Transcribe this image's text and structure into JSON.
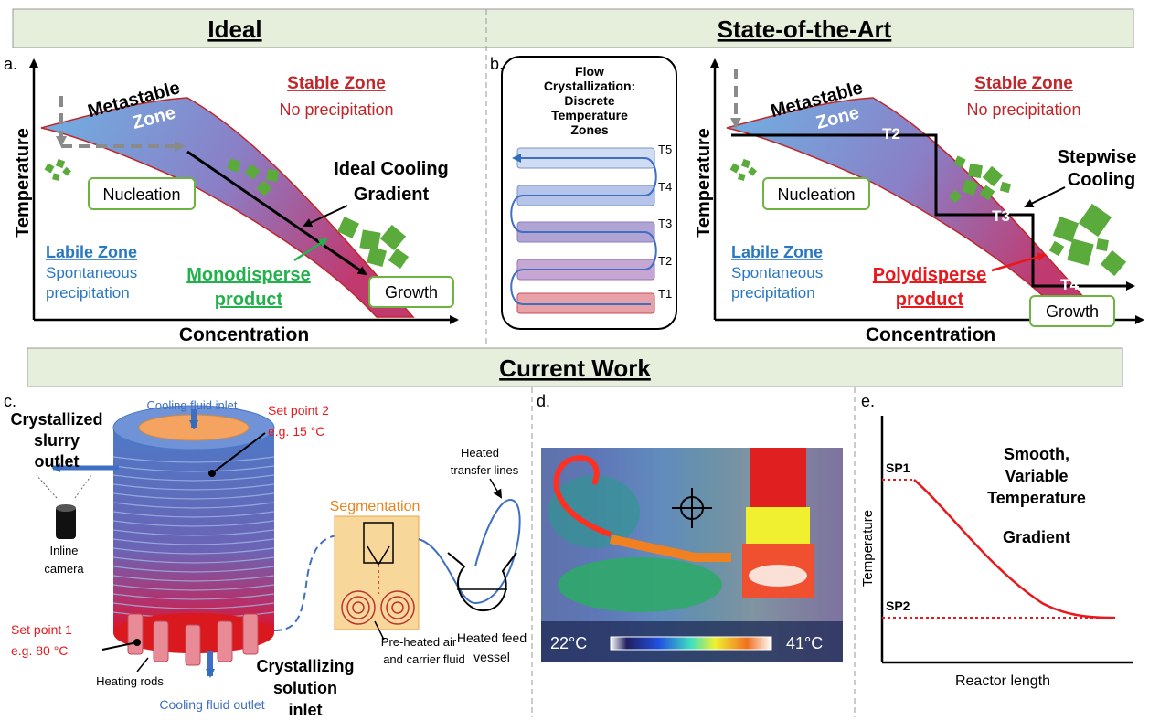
{
  "banners": {
    "ideal": "Ideal",
    "state_of_art": "State-of-the-Art",
    "current_work": "Current Work"
  },
  "panel_a": {
    "letter": "a.",
    "x_axis": "Concentration",
    "y_axis": "Temperature",
    "metastable_1": "Metastable",
    "metastable_2": "Zone",
    "stable_title": "Stable Zone",
    "stable_sub": "No precipitation",
    "labile_title": "Labile Zone",
    "labile_sub1": "Spontaneous",
    "labile_sub2": "precipitation",
    "nucleation": "Nucleation",
    "growth": "Growth",
    "cooling_1": "Ideal Cooling",
    "cooling_2": "Gradient",
    "product_1": "Monodisperse",
    "product_2": "product"
  },
  "panel_b": {
    "letter": "b.",
    "flow_title": [
      "Flow",
      "Crystallization:",
      "Discrete",
      "Temperature",
      "Zones"
    ],
    "zones": [
      "T5",
      "T4",
      "T3",
      "T2",
      "T1"
    ],
    "metastable_1": "Metastable",
    "metastable_2": "Zone",
    "stable_title": "Stable Zone",
    "stable_sub": "No precipitation",
    "labile_title": "Labile Zone",
    "labile_sub1": "Spontaneous",
    "labile_sub2": "precipitation",
    "nucleation": "Nucleation",
    "growth": "Growth",
    "stepwise_1": "Stepwise",
    "stepwise_2": "Cooling",
    "step_labels": [
      "T2",
      "T3",
      "T4"
    ],
    "product_1": "Polydisperse",
    "product_2": "product",
    "x_axis": "Concentration",
    "y_axis": "Temperature"
  },
  "panel_c": {
    "letter": "c.",
    "cooling_inlet": "Cooling fluid inlet",
    "cooling_outlet": "Cooling fluid outlet",
    "sp2_1": "Set point 2",
    "sp2_2": "e.g. 15 °C",
    "sp1_1": "Set point 1",
    "sp1_2": "e.g. 80 °C",
    "slurry": [
      "Crystallized",
      "slurry",
      "outlet"
    ],
    "camera": [
      "Inline",
      "camera"
    ],
    "heating_rods": "Heating rods",
    "solution": [
      "Crystallizing",
      "solution",
      "inlet"
    ],
    "segmentation": "Segmentation",
    "preheated": [
      "Pre-heated air",
      "and carrier fluid"
    ],
    "transfer": [
      "Heated",
      "transfer lines"
    ],
    "feed": [
      "Heated feed",
      "vessel"
    ]
  },
  "panel_d": {
    "letter": "d.",
    "temp_low": "22°C",
    "temp_high": "41°C"
  },
  "panel_e": {
    "letter": "e.",
    "sp1": "SP1",
    "sp2": "SP2",
    "title": [
      "Smooth,",
      "Variable",
      "Temperature",
      "Gradient"
    ],
    "y_axis": "Temperature",
    "x_axis": "Reactor length"
  },
  "colors": {
    "banner": "#e6efdc",
    "stable_red": "#c0262a",
    "labile_blue": "#2a78c2",
    "mono_green": "#22b14c",
    "poly_red": "#e8181c",
    "crystal_green": "#5aab3c"
  }
}
